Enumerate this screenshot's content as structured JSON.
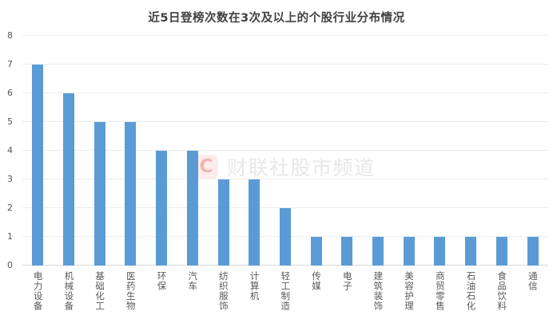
{
  "title": "近5日登榜次数在3次及以上的个股行业分布情况",
  "watermark": {
    "logo_letter": "C",
    "text": "财联社股市频道"
  },
  "colors": {
    "bar": "#5B9BD5",
    "gridline": "#ececec",
    "axis_line": "#d9d9d9",
    "title_text": "#404040",
    "tick_text": "#595959",
    "watermark_logo_bg": "#fcecec",
    "watermark_logo_letter": "#f2b3ae",
    "watermark_text": "#e9e7e7"
  },
  "chart_data": {
    "type": "bar",
    "title": "近5日登榜次数在3次及以上的个股行业分布情况",
    "categories": [
      "电力设备",
      "机械设备",
      "基础化工",
      "医药生物",
      "环保",
      "汽车",
      "纺织服饰",
      "计算机",
      "轻工制造",
      "传媒",
      "电子",
      "建筑装饰",
      "美容护理",
      "商贸零售",
      "石油石化",
      "食品饮料",
      "通信"
    ],
    "values": [
      7,
      6,
      5,
      5,
      4,
      4,
      3,
      3,
      2,
      1,
      1,
      1,
      1,
      1,
      1,
      1,
      1
    ],
    "xlabel": "",
    "ylabel": "",
    "ylim": [
      0,
      8
    ],
    "yticks": [
      0,
      1,
      2,
      3,
      4,
      5,
      6,
      7,
      8
    ],
    "grid": true,
    "legend": false,
    "bar_color": "#5B9BD5"
  }
}
